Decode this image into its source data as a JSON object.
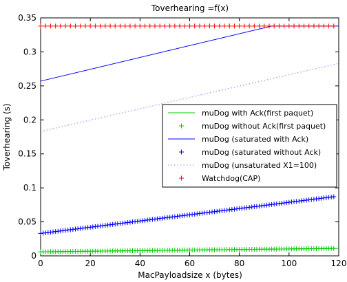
{
  "chart_data": {
    "type": "line",
    "title": "Toverhearing =f(x)",
    "xlabel": "MacPayloadsize x (bytes)",
    "ylabel": "Toverhearing (s)",
    "xlim": [
      0,
      120
    ],
    "ylim": [
      0,
      0.35
    ],
    "xticks": [
      "0",
      "20",
      "40",
      "60",
      "80",
      "100",
      "120"
    ],
    "yticks": [
      "0",
      "0.05",
      "0.1",
      "0.15",
      "0.2",
      "0.25",
      "0.3",
      "0.35"
    ],
    "grid": false,
    "legend_position": "center-right",
    "series": [
      {
        "name": "muDog with Ack(first paquet)",
        "style": "line",
        "color": "#00cc00",
        "x": [
          0,
          120
        ],
        "y": [
          0.006,
          0.011
        ]
      },
      {
        "name": "muDog without Ack(first paquet)",
        "style": "plus",
        "color": "#00cc00",
        "x_range": [
          0,
          118
        ],
        "x_step": 1,
        "y_at_x0": 0.006,
        "y_at_x118": 0.011
      },
      {
        "name": "muDog (saturated with Ack)",
        "style": "line",
        "color": "#0000ff",
        "x": [
          0,
          93,
          120
        ],
        "y": [
          0.257,
          0.338,
          0.338
        ]
      },
      {
        "name": "muDog (saturated without Ack)",
        "style": "plus",
        "color": "#0000ff",
        "x_range": [
          0,
          118
        ],
        "x_step": 1,
        "y_at_x0": 0.033,
        "y_at_x118": 0.087
      },
      {
        "name": "muDog  (unsaturated  X1=100)",
        "style": "dotted",
        "color": "#8080ff",
        "x": [
          0,
          120
        ],
        "y": [
          0.183,
          0.283
        ]
      },
      {
        "name": "Watchdog(CAP)",
        "style": "plus",
        "color": "#ff0000",
        "x_range": [
          0,
          118
        ],
        "x_step": 2,
        "y_at_x0": 0.338,
        "y_at_x118": 0.338
      }
    ]
  }
}
